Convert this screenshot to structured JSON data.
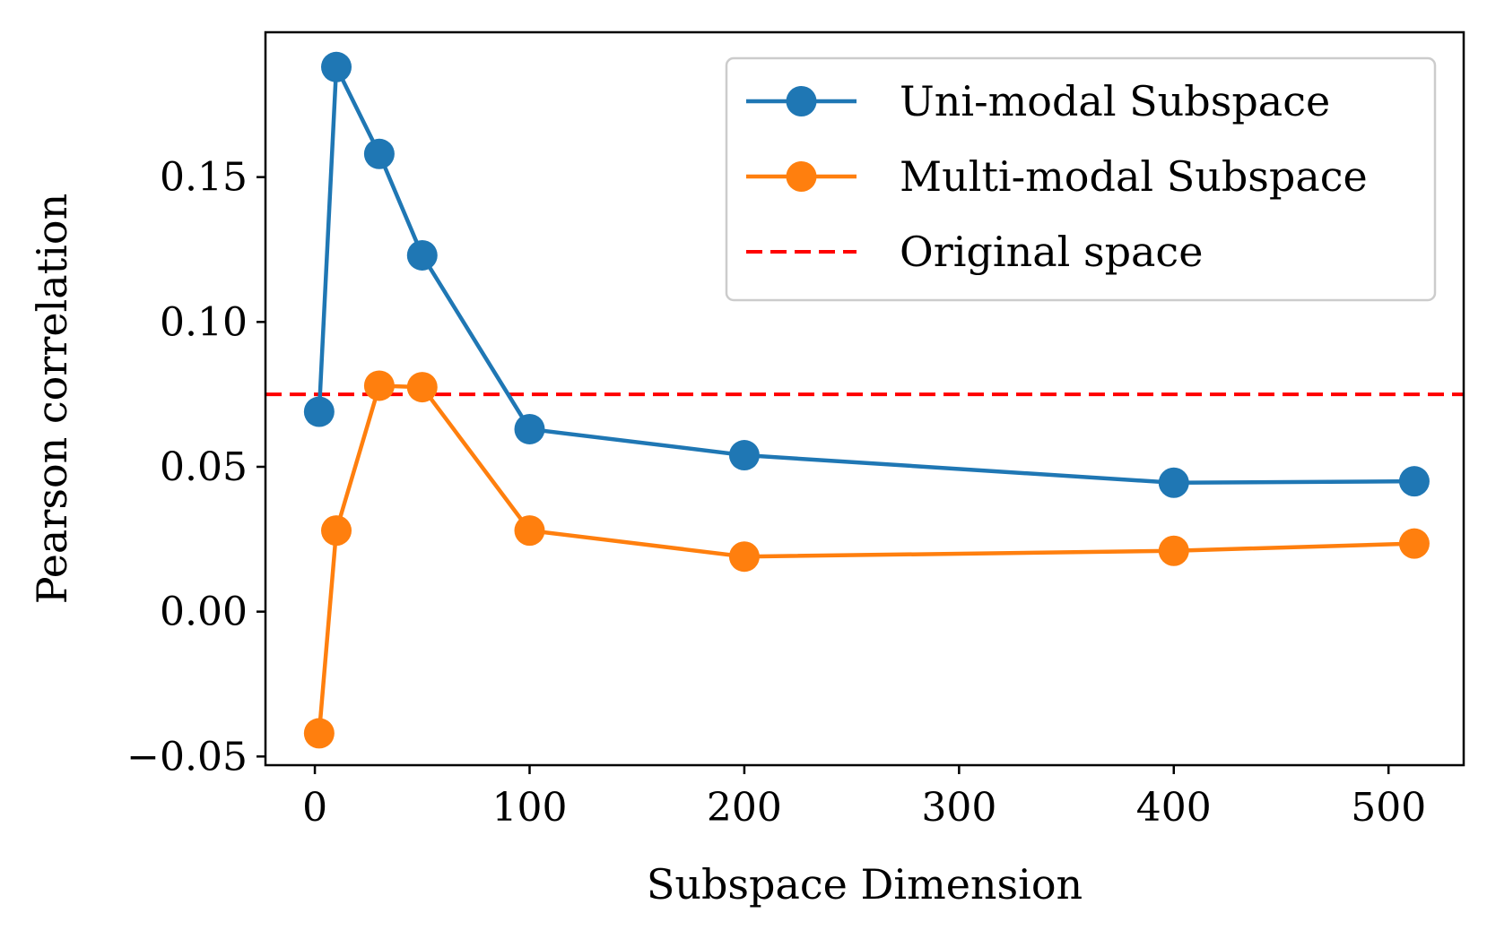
{
  "chart_data": {
    "type": "line",
    "title": "",
    "xlabel": "Subspace Dimension",
    "ylabel": "Pearson correlation",
    "xlim": [
      -23,
      535
    ],
    "ylim": [
      -0.053,
      0.2
    ],
    "xticks": [
      0,
      100,
      200,
      300,
      400,
      500
    ],
    "xtick_labels": [
      "0",
      "100",
      "200",
      "300",
      "400",
      "500"
    ],
    "yticks": [
      -0.05,
      0.0,
      0.05,
      0.1,
      0.15
    ],
    "ytick_labels": [
      "−0.05",
      "0.00",
      "0.05",
      "0.10",
      "0.15"
    ],
    "grid": false,
    "legend_position": "top-right",
    "series": [
      {
        "name": "Uni-modal Subspace",
        "color": "#1f77b4",
        "marker": "circle",
        "x": [
          2,
          10,
          30,
          50,
          100,
          200,
          400,
          512
        ],
        "y": [
          0.069,
          0.188,
          0.158,
          0.123,
          0.063,
          0.054,
          0.0445,
          0.045
        ]
      },
      {
        "name": "Multi-modal Subspace",
        "color": "#ff7f0e",
        "marker": "circle",
        "x": [
          2,
          10,
          30,
          50,
          100,
          200,
          400,
          512
        ],
        "y": [
          -0.042,
          0.028,
          0.078,
          0.0775,
          0.028,
          0.019,
          0.021,
          0.0235
        ]
      }
    ],
    "reference_lines": [
      {
        "name": "Original space",
        "color": "#ff0000",
        "style": "dashed",
        "y": 0.075
      }
    ]
  }
}
